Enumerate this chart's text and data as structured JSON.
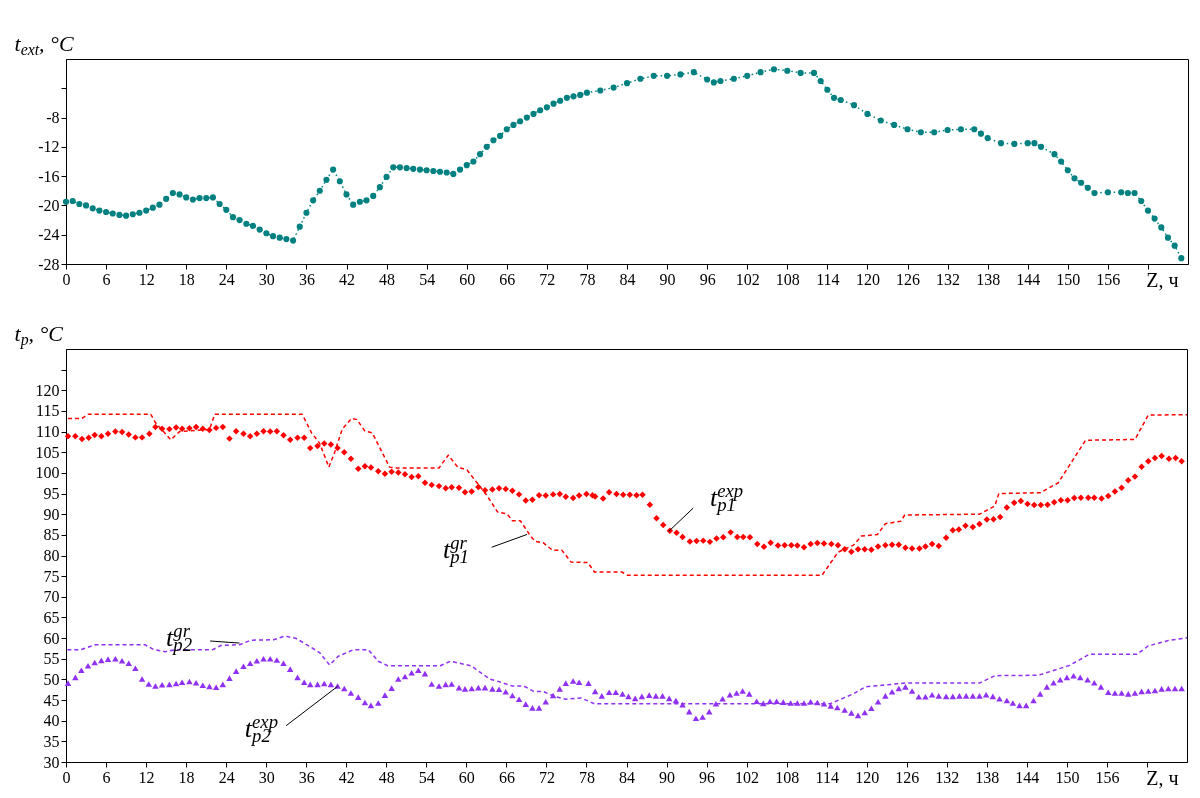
{
  "chart_data": [
    {
      "type": "line",
      "xlabel": "Z, ч",
      "ylabel": "t$_{ext}$, °C",
      "xlim": [
        0,
        168
      ],
      "xticks": [
        0,
        6,
        12,
        18,
        24,
        30,
        36,
        42,
        48,
        54,
        60,
        66,
        72,
        78,
        84,
        90,
        96,
        102,
        108,
        114,
        120,
        126,
        132,
        138,
        144,
        150,
        156,
        {
          "value": 162,
          "label": null
        }
      ],
      "ylim": [
        -28,
        0
      ],
      "yticks": [
        -28,
        -24,
        -20,
        -16,
        -12,
        -8,
        {
          "value": -4,
          "label": null
        }
      ],
      "grid": false,
      "marker": "circle",
      "line_style": "dotted",
      "series": [
        {
          "color": "#008080",
          "x": [
            0,
            1,
            2,
            3,
            4,
            5,
            6,
            7,
            8,
            9,
            10,
            11,
            12,
            13,
            14,
            15,
            16,
            17,
            18,
            19,
            20,
            21,
            22,
            23,
            24,
            25,
            26,
            27,
            28,
            29,
            30,
            31,
            32,
            33,
            34,
            35,
            36,
            37,
            38,
            39,
            40,
            41,
            42,
            43,
            44,
            45,
            46,
            47,
            48,
            49,
            50,
            51,
            52,
            53,
            54,
            55,
            56,
            57,
            58,
            59,
            60,
            61,
            62,
            63,
            64,
            65,
            66,
            67,
            68,
            69,
            70,
            71,
            72,
            73,
            74,
            75,
            76,
            77,
            78,
            80,
            82,
            84,
            86,
            88,
            90,
            92,
            94,
            96,
            97,
            98,
            100,
            102,
            104,
            106,
            108,
            110,
            112,
            113,
            114,
            115,
            116,
            118,
            120,
            122,
            124,
            126,
            128,
            130,
            132,
            134,
            136,
            137,
            138,
            140,
            142,
            144,
            145,
            146,
            148,
            149,
            150,
            151,
            152,
            153,
            154,
            156,
            158,
            159,
            160,
            161,
            162,
            163,
            164,
            165,
            166,
            167
          ],
          "values": [
            -19.5,
            -19.4,
            -19.8,
            -20.0,
            -20.4,
            -20.7,
            -20.9,
            -21.1,
            -21.3,
            -21.4,
            -21.2,
            -21.0,
            -20.7,
            -20.3,
            -19.9,
            -19.1,
            -18.3,
            -18.5,
            -18.9,
            -19.2,
            -19.0,
            -19.0,
            -18.9,
            -19.8,
            -20.6,
            -21.6,
            -22.0,
            -22.5,
            -22.8,
            -23.3,
            -23.8,
            -24.2,
            -24.4,
            -24.6,
            -24.8,
            -22.9,
            -21.0,
            -19.3,
            -18.0,
            -16.5,
            -15.1,
            -16.7,
            -18.5,
            -19.9,
            -19.5,
            -19.3,
            -18.7,
            -17.5,
            -16.1,
            -14.8,
            -14.8,
            -14.9,
            -15.0,
            -15.1,
            -15.2,
            -15.3,
            -15.4,
            -15.5,
            -15.7,
            -15.1,
            -14.5,
            -14.0,
            -13.0,
            -12.0,
            -11.1,
            -10.5,
            -9.6,
            -9.0,
            -8.5,
            -8.0,
            -7.5,
            -7.0,
            -6.6,
            -6.1,
            -5.7,
            -5.3,
            -5.1,
            -4.9,
            -4.6,
            -4.3,
            -3.9,
            -3.3,
            -2.7,
            -2.3,
            -2.3,
            -2.1,
            -1.8,
            -2.8,
            -3.2,
            -3.0,
            -2.7,
            -2.3,
            -1.8,
            -1.4,
            -1.6,
            -1.9,
            -1.9,
            -3.0,
            -4.2,
            -5.3,
            -5.6,
            -6.3,
            -7.5,
            -8.4,
            -9.0,
            -9.6,
            -10.0,
            -10.0,
            -9.7,
            -9.6,
            -9.6,
            -10.2,
            -10.8,
            -11.5,
            -11.6,
            -11.5,
            -11.5,
            -12.0,
            -13.0,
            -14.0,
            -15.2,
            -16.3,
            -16.9,
            -17.6,
            -18.3,
            -18.2,
            -18.2,
            -18.3,
            -18.3,
            -19.4,
            -20.7,
            -21.8,
            -23.0,
            -24.4,
            -25.5,
            -27.2
          ]
        }
      ]
    },
    {
      "type": "line",
      "xlabel": "Z, ч",
      "ylabel": "t$_{p}$, °C",
      "xlim": [
        0,
        168
      ],
      "xticks": [
        0,
        6,
        12,
        18,
        24,
        30,
        36,
        42,
        48,
        54,
        60,
        66,
        72,
        78,
        84,
        90,
        96,
        102,
        108,
        114,
        120,
        126,
        132,
        138,
        144,
        150,
        156,
        {
          "value": 162,
          "label": null
        }
      ],
      "ylim": [
        30,
        130
      ],
      "yticks": [
        30,
        35,
        40,
        45,
        50,
        55,
        60,
        65,
        70,
        75,
        80,
        85,
        90,
        95,
        100,
        105,
        110,
        115,
        120,
        {
          "value": 125,
          "label": null
        }
      ],
      "grid": false,
      "series": [
        {
          "name": "t$_{p1}$$^{exp}$",
          "type": "scatter",
          "marker": "diamond",
          "color": "#ff0000",
          "x": [
            0.3,
            1.4,
            2.4,
            3.4,
            4.3,
            5.3,
            6.3,
            7.4,
            8.4,
            9.4,
            10.4,
            11.4,
            12.5,
            13.4,
            14.4,
            15.5,
            16.5,
            17.4,
            18.5,
            19.5,
            20.5,
            21.5,
            22.5,
            23.5,
            24.5,
            25.5,
            26.6,
            27.6,
            28.6,
            29.6,
            30.6,
            31.6,
            32.6,
            33.6,
            34.7,
            35.7,
            36.6,
            37.7,
            38.7,
            39.7,
            40.7,
            41.7,
            42.7,
            43.8,
            44.8,
            45.7,
            46.8,
            47.8,
            48.8,
            49.8,
            50.8,
            51.8,
            52.8,
            53.8,
            54.8,
            55.9,
            56.9,
            57.8,
            58.9,
            59.8,
            60.8,
            61.8,
            62.8,
            63.9,
            64.9,
            65.9,
            66.9,
            67.9,
            68.9,
            69.9,
            70.9,
            71.9,
            73.0,
            74.0,
            74.9,
            76.0,
            76.9,
            78.0,
            78.9,
            79.3,
            80.5,
            81.4,
            82.5,
            83.5,
            84.5,
            85.5,
            86.4,
            87.5,
            88.5,
            89.5,
            90.5,
            91.5,
            92.4,
            93.5,
            94.5,
            95.5,
            96.5,
            97.5,
            98.5,
            99.6,
            100.6,
            101.5,
            102.5,
            103.6,
            104.6,
            105.6,
            106.7,
            107.7,
            108.7,
            109.6,
            110.6,
            111.6,
            112.6,
            113.6,
            114.7,
            115.7,
            116.7,
            117.7,
            118.7,
            119.7,
            120.7,
            121.7,
            122.8,
            123.8,
            124.8,
            125.8,
            126.8,
            127.9,
            128.8,
            129.8,
            130.8,
            131.9,
            132.9,
            133.8,
            134.8,
            135.9,
            136.9,
            138.0,
            139.0,
            140.0,
            141.0,
            142.1,
            143.1,
            144.1,
            145.1,
            146.1,
            147.1,
            148.1,
            149.1,
            150.1,
            151.1,
            152.1,
            153.2,
            154.1,
            155.2,
            156.2,
            157.2,
            158.2,
            159.2,
            160.2,
            161.2,
            162.2,
            163.2,
            164.2,
            165.3,
            166.3,
            167.2
          ],
          "values": [
            108.9,
            108.9,
            108.2,
            108.5,
            109.2,
            108.9,
            109.5,
            110.0,
            109.9,
            109.3,
            108.6,
            108.6,
            109.5,
            111.1,
            110.7,
            110.6,
            111.0,
            110.7,
            110.8,
            111.1,
            110.7,
            110.4,
            110.9,
            111.1,
            108.3,
            110.1,
            109.5,
            108.9,
            109.5,
            110.1,
            110.0,
            110.1,
            109.1,
            108.0,
            108.5,
            108.5,
            106.0,
            106.5,
            107.1,
            106.9,
            106.0,
            105.0,
            103.4,
            101.0,
            101.6,
            101.3,
            100.4,
            99.8,
            100.3,
            100.1,
            99.7,
            99.0,
            99.2,
            97.6,
            97.1,
            96.8,
            96.3,
            96.5,
            96.4,
            95.3,
            95.5,
            96.6,
            95.8,
            96.0,
            96.3,
            96.1,
            95.7,
            94.8,
            93.3,
            93.5,
            94.6,
            94.5,
            94.8,
            94.9,
            94.2,
            93.9,
            94.5,
            94.9,
            94.6,
            94.3,
            93.8,
            95.3,
            94.9,
            94.7,
            94.7,
            94.6,
            94.7,
            92.3,
            89.0,
            87.4,
            86.0,
            85.5,
            84.5,
            83.4,
            83.5,
            83.6,
            83.3,
            84.1,
            84.4,
            85.6,
            84.5,
            84.5,
            84.4,
            82.8,
            82.1,
            83.1,
            82.4,
            82.5,
            82.5,
            82.4,
            82.0,
            82.8,
            83.0,
            82.9,
            82.8,
            82.5,
            81.5,
            80.9,
            81.5,
            81.5,
            81.4,
            82.2,
            82.5,
            82.6,
            82.6,
            81.9,
            81.7,
            81.7,
            82.2,
            82.8,
            82.3,
            84.3,
            86.1,
            86.3,
            87.2,
            86.9,
            87.6,
            88.7,
            88.8,
            89.3,
            91.6,
            92.8,
            93.2,
            92.5,
            92.2,
            92.2,
            92.3,
            92.9,
            93.4,
            93.4,
            93.9,
            94.0,
            94.0,
            94.0,
            93.8,
            94.4,
            95.5,
            96.4,
            98.2,
            99.1,
            101.5,
            102.8,
            103.6,
            104.1,
            103.4,
            103.6,
            102.8
          ]
        },
        {
          "name": "t$_{p1}$$^{gr}$",
          "type": "line",
          "marker": "none",
          "line_style": "dashed",
          "color": "#ff0000",
          "x": [
            0.3,
            2.4,
            3.3,
            12.7,
            13.4,
            15.7,
            17.0,
            21.5,
            22.3,
            35.4,
            36.8,
            38.0,
            39.4,
            40.2,
            41.4,
            42.8,
            43.6,
            44.8,
            45.9,
            48.5,
            49.3,
            55.9,
            57.3,
            58.7,
            60.1,
            63.0,
            64.7,
            66.1,
            66.9,
            68.1,
            69.5,
            70.3,
            71.5,
            72.9,
            74.3,
            75.7,
            78.2,
            79.2,
            83.3,
            84.2,
            113.3,
            115.7,
            118.0,
            119.2,
            121.6,
            122.8,
            125.1,
            125.7,
            136.9,
            139.2,
            139.8,
            146.0,
            148.7,
            152.8,
            160.2,
            162.2,
            168.0
          ],
          "values": [
            113.2,
            113.2,
            114.2,
            114.2,
            112.2,
            108.0,
            110.0,
            110.5,
            114.2,
            114.2,
            109.7,
            107.2,
            101.4,
            104.7,
            110.6,
            113.2,
            112.9,
            110.1,
            109.7,
            101.4,
            101.2,
            101.2,
            104.3,
            101.4,
            100.7,
            94.7,
            90.5,
            90.1,
            88.4,
            88.4,
            85.0,
            83.4,
            83.1,
            81.3,
            81.3,
            78.4,
            78.3,
            76.0,
            76.0,
            75.2,
            75.2,
            80.8,
            82.5,
            84.7,
            85.1,
            87.7,
            88.3,
            89.8,
            90.0,
            92.0,
            95.0,
            95.2,
            97.6,
            107.9,
            108.1,
            114.0,
            114.1
          ]
        },
        {
          "name": "t$_{p2}$$^{exp}$",
          "type": "scatter",
          "marker": "triangle",
          "color": "#9030f0",
          "x": [
            0.3,
            1.4,
            2.3,
            3.3,
            4.3,
            5.3,
            6.3,
            7.4,
            8.4,
            9.4,
            10.4,
            11.4,
            12.4,
            13.4,
            14.4,
            15.5,
            16.5,
            17.4,
            18.5,
            19.5,
            20.5,
            21.5,
            22.5,
            23.5,
            24.5,
            25.5,
            26.6,
            27.6,
            28.6,
            29.6,
            30.6,
            31.6,
            32.6,
            33.6,
            34.7,
            35.7,
            36.6,
            37.7,
            38.7,
            39.7,
            40.7,
            41.7,
            42.7,
            43.8,
            44.8,
            45.7,
            46.8,
            47.8,
            48.8,
            49.8,
            50.8,
            51.8,
            52.8,
            53.8,
            54.8,
            55.9,
            56.9,
            57.8,
            58.9,
            59.8,
            60.8,
            61.8,
            62.8,
            63.9,
            64.9,
            65.9,
            66.9,
            67.9,
            68.9,
            69.9,
            70.9,
            71.9,
            73.0,
            74.0,
            74.9,
            76.0,
            76.9,
            78.3,
            79.3,
            80.3,
            81.4,
            82.4,
            83.4,
            84.3,
            85.3,
            86.3,
            87.4,
            88.4,
            89.4,
            90.4,
            91.4,
            92.4,
            93.4,
            94.4,
            95.4,
            96.4,
            97.4,
            98.4,
            99.5,
            100.5,
            101.4,
            102.4,
            103.5,
            104.5,
            105.5,
            106.5,
            107.5,
            108.6,
            109.6,
            110.6,
            111.6,
            112.6,
            113.6,
            114.6,
            115.6,
            116.7,
            117.7,
            118.7,
            119.7,
            120.7,
            121.7,
            122.8,
            123.8,
            124.8,
            125.8,
            126.8,
            127.8,
            128.8,
            129.8,
            130.8,
            131.9,
            132.9,
            133.9,
            134.9,
            135.9,
            136.9,
            137.9,
            138.9,
            139.9,
            141.0,
            141.9,
            142.9,
            143.9,
            145.0,
            146.0,
            147.0,
            148.0,
            149.0,
            150.0,
            151.0,
            152.0,
            153.1,
            154.1,
            155.1,
            156.2,
            157.2,
            158.2,
            159.2,
            160.2,
            161.2,
            162.2,
            163.2,
            164.2,
            165.2,
            166.2,
            167.2
          ],
          "values": [
            49.1,
            50.5,
            52.2,
            53.3,
            54.1,
            54.6,
            54.9,
            55.0,
            54.5,
            53.9,
            52.7,
            50.1,
            48.9,
            48.4,
            48.7,
            48.8,
            49.0,
            49.3,
            49.5,
            49.2,
            48.6,
            48.3,
            48.1,
            48.8,
            50.3,
            52.0,
            53.2,
            53.9,
            54.5,
            55.0,
            55.0,
            54.7,
            53.9,
            52.5,
            50.5,
            49.3,
            48.8,
            48.8,
            49.0,
            48.8,
            48.4,
            47.8,
            46.7,
            45.7,
            44.4,
            43.7,
            44.3,
            46.2,
            47.9,
            50.1,
            50.7,
            51.6,
            52.2,
            51.4,
            48.9,
            48.4,
            48.8,
            48.9,
            48.0,
            47.7,
            47.8,
            48.0,
            48.0,
            47.7,
            47.6,
            47.0,
            46.1,
            45.2,
            44.0,
            43.1,
            43.1,
            44.6,
            46.1,
            47.7,
            49.1,
            49.6,
            49.3,
            49.1,
            47.1,
            46.0,
            46.9,
            46.9,
            46.5,
            45.9,
            45.4,
            45.9,
            46.2,
            46.0,
            46.0,
            45.4,
            44.9,
            43.9,
            42.2,
            40.6,
            40.9,
            42.2,
            44.1,
            45.3,
            46.3,
            46.7,
            47.2,
            46.5,
            44.7,
            44.2,
            44.7,
            44.7,
            44.5,
            44.3,
            44.3,
            44.3,
            44.6,
            44.4,
            44.1,
            43.6,
            43.2,
            42.6,
            41.9,
            41.3,
            42.0,
            43.0,
            44.6,
            46.0,
            47.0,
            47.8,
            48.2,
            47.2,
            45.8,
            45.8,
            46.3,
            46.0,
            45.9,
            45.9,
            46.0,
            46.0,
            46.0,
            46.0,
            46.3,
            45.9,
            45.3,
            44.9,
            44.3,
            43.7,
            43.7,
            44.9,
            46.5,
            48.2,
            49.2,
            49.9,
            50.5,
            50.9,
            50.5,
            49.9,
            49.2,
            48.2,
            46.9,
            46.7,
            46.7,
            46.5,
            46.7,
            47.1,
            47.2,
            47.3,
            47.7,
            47.8,
            47.8,
            47.8
          ]
        },
        {
          "name": "t$_{p2}$$^{gr}$",
          "type": "line",
          "marker": "none",
          "line_style": "dashed",
          "color": "#9030f0",
          "x": [
            0.2,
            2.2,
            4.4,
            11.8,
            13.2,
            14.9,
            16.4,
            22.0,
            23.2,
            26.0,
            27.7,
            31.1,
            32.8,
            34.5,
            36.3,
            38.0,
            39.5,
            40.8,
            43.1,
            45.3,
            46.8,
            48.2,
            56.1,
            57.6,
            60.7,
            63.5,
            65.2,
            66.9,
            68.6,
            70.1,
            71.5,
            73.2,
            74.9,
            77.2,
            79.2,
            114.5,
            118.0,
            119.8,
            125.7,
            136.9,
            139.2,
            145.7,
            147.5,
            150.4,
            153.4,
            160.5,
            162.2,
            165.2,
            168.0
          ],
          "values": [
            57.2,
            57.2,
            58.4,
            58.4,
            57.2,
            56.7,
            57.2,
            57.2,
            58.2,
            58.4,
            59.5,
            59.6,
            60.5,
            59.9,
            58.2,
            56.5,
            53.5,
            55.6,
            57.2,
            57.2,
            54.4,
            53.3,
            53.3,
            54.4,
            53.3,
            50.1,
            49.3,
            48.4,
            48.4,
            47.1,
            47.1,
            45.9,
            45.2,
            45.5,
            44.1,
            44.1,
            46.5,
            48.2,
            49.1,
            49.1,
            50.9,
            51.0,
            51.9,
            53.4,
            56.1,
            56.1,
            58.1,
            59.4,
            60.1
          ]
        }
      ]
    }
  ]
}
